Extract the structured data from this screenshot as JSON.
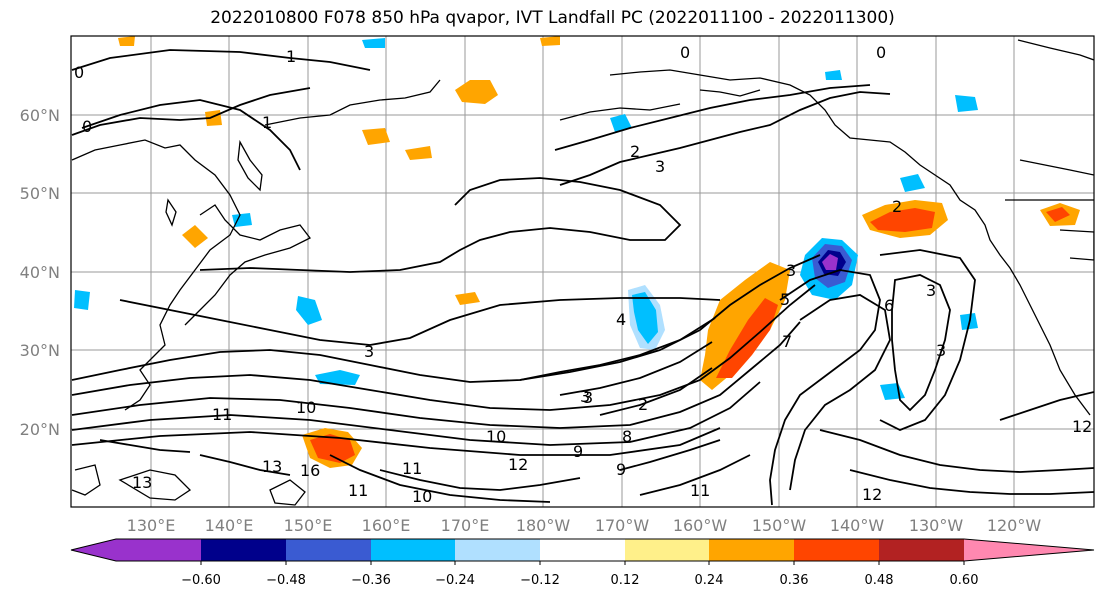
{
  "title": "2022010800 F078 850 hPa qvapor, IVT Landfall PC (2022011100 - 2022011300)",
  "map": {
    "lat_labels": [
      "60°N",
      "50°N",
      "40°N",
      "30°N",
      "20°N"
    ],
    "lon_labels": [
      "130°E",
      "140°E",
      "150°E",
      "160°E",
      "170°E",
      "180°W",
      "170°W",
      "160°W",
      "150°W",
      "140°W",
      "130°W",
      "120°W"
    ],
    "contour_labels": [
      "1",
      "0",
      "0",
      "0",
      "1",
      "0",
      "2",
      "3",
      "2",
      "3",
      "3",
      "5",
      "6",
      "3",
      "4",
      "7",
      "3",
      "10",
      "11",
      "13",
      "13",
      "16",
      "11",
      "10",
      "11",
      "12",
      "9",
      "10",
      "9",
      "8",
      "3",
      "2",
      "12",
      "11",
      "12",
      "3"
    ]
  },
  "colorbar": {
    "colors": [
      "#9932cc",
      "#00008b",
      "#3a5bd2",
      "#00bfff",
      "#b0e0ff",
      "#ffffff",
      "#fff08a",
      "#ffa500",
      "#ff4500",
      "#b22222",
      "#ff88b0"
    ],
    "ticks": [
      "−0.60",
      "−0.48",
      "−0.36",
      "−0.24",
      "−0.12",
      "0.12",
      "0.24",
      "0.36",
      "0.48",
      "0.60"
    ]
  }
}
